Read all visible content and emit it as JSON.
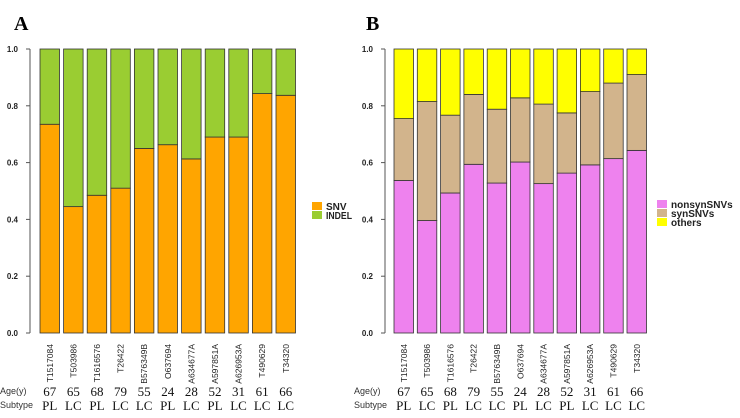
{
  "chart_data": [
    {
      "type": "bar",
      "stacked": true,
      "panel_label": "A",
      "title": "",
      "xlabel": "",
      "ylabel": "",
      "ylim": [
        0,
        1
      ],
      "yticks": [
        "0.0",
        "0.2",
        "0.4",
        "0.6",
        "0.8",
        "1.0"
      ],
      "categories": [
        "T1517084",
        "T503986",
        "T1616576",
        "T26422",
        "B576349B",
        "O637694",
        "A634677A",
        "A597851A",
        "A626953A",
        "T490629",
        "T34320"
      ],
      "series": [
        {
          "name": "SNV",
          "color": "#FFA500",
          "values": [
            0.735,
            0.445,
            0.485,
            0.51,
            0.65,
            0.663,
            0.613,
            0.69,
            0.69,
            0.843,
            0.837
          ]
        },
        {
          "name": "INDEL",
          "color": "#9ACD32",
          "values": [
            0.265,
            0.555,
            0.515,
            0.49,
            0.35,
            0.337,
            0.387,
            0.31,
            0.31,
            0.157,
            0.163
          ]
        }
      ],
      "legend": {
        "position": "right",
        "labels": [
          "SNV",
          "INDEL"
        ]
      }
    },
    {
      "type": "bar",
      "stacked": true,
      "panel_label": "B",
      "title": "",
      "xlabel": "",
      "ylabel": "",
      "ylim": [
        0,
        1
      ],
      "yticks": [
        "0.0",
        "0.2",
        "0.4",
        "0.6",
        "0.8",
        "1.0"
      ],
      "categories": [
        "T1517084",
        "T503986",
        "T1616576",
        "T26422",
        "B576349B",
        "O637694",
        "A634677A",
        "A597851A",
        "A626953A",
        "T490629",
        "T34320"
      ],
      "series": [
        {
          "name": "nonsynSNVs",
          "color": "#EE82EE",
          "values": [
            0.537,
            0.396,
            0.493,
            0.594,
            0.528,
            0.602,
            0.526,
            0.563,
            0.592,
            0.614,
            0.643
          ]
        },
        {
          "name": "synSNVs",
          "color": "#D2B48C",
          "values": [
            0.218,
            0.419,
            0.274,
            0.246,
            0.26,
            0.226,
            0.28,
            0.212,
            0.258,
            0.266,
            0.267
          ]
        },
        {
          "name": "others",
          "color": "#FFFF00",
          "values": [
            0.245,
            0.185,
            0.233,
            0.16,
            0.212,
            0.172,
            0.194,
            0.225,
            0.15,
            0.12,
            0.09
          ]
        }
      ],
      "legend": {
        "position": "right",
        "labels": [
          "nonsynSNVs",
          "synSNVs",
          "others"
        ]
      }
    }
  ],
  "annotations": {
    "age_label": "Age(y)",
    "subtype_label": "Subtype",
    "ages": [
      "67",
      "65",
      "68",
      "79",
      "55",
      "24",
      "28",
      "52",
      "31",
      "61",
      "66"
    ],
    "subtypes": [
      "PL",
      "LC",
      "PL",
      "LC",
      "LC",
      "PL",
      "LC",
      "PL",
      "LC",
      "LC",
      "LC"
    ]
  }
}
